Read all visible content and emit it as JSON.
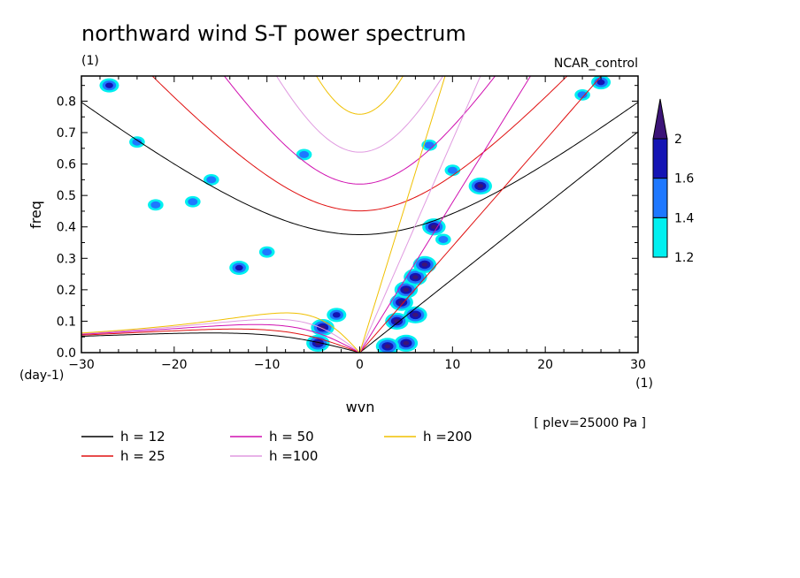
{
  "chart_data": {
    "type": "heatmap",
    "title": "northward wind S-T power spectrum",
    "subtitle": "(1)",
    "case_label": "NCAR_control",
    "xlabel": "wvn",
    "ylabel": "freq",
    "x_unit_label": "(1)",
    "y_unit_label": "(day-1)",
    "level_note": "[ plev=25000 Pa ]",
    "xlim": [
      -30,
      30
    ],
    "ylim": [
      0,
      0.88
    ],
    "x_ticks": [
      -30,
      -20,
      -10,
      0,
      10,
      20,
      30
    ],
    "x_tick_labels": [
      "−30",
      "−20",
      "−10",
      "0",
      "10",
      "20",
      "30"
    ],
    "y_ticks": [
      0.0,
      0.1,
      0.2,
      0.3,
      0.4,
      0.5,
      0.6,
      0.7,
      0.8
    ],
    "y_tick_labels": [
      "0.0",
      "0.1",
      "0.2",
      "0.3",
      "0.4",
      "0.5",
      "0.6",
      "0.7",
      "0.8"
    ],
    "colorbar": {
      "levels": [
        1.2,
        1.4,
        1.6,
        2
      ],
      "labels": [
        "1.2",
        "1.4",
        "1.6",
        "2"
      ],
      "colors": [
        "#00f0f0",
        "#1e78ff",
        "#1414b4",
        "#3c1478"
      ]
    },
    "dispersion_curves": [
      {
        "label": "h = 12",
        "h": 12,
        "color": "#000000"
      },
      {
        "label": "h = 25",
        "h": 25,
        "color": "#e01010"
      },
      {
        "label": "h = 50",
        "h": 50,
        "color": "#d010b0"
      },
      {
        "label": "h =100",
        "h": 100,
        "color": "#e09ae0"
      },
      {
        "label": "h =200",
        "h": 200,
        "color": "#f0c000"
      }
    ],
    "power_blobs": [
      {
        "x": -4,
        "y": 0.08,
        "level": 3
      },
      {
        "x": -4.5,
        "y": 0.03,
        "level": 3
      },
      {
        "x": -2.5,
        "y": 0.12,
        "level": 2
      },
      {
        "x": 4,
        "y": 0.1,
        "level": 3
      },
      {
        "x": 4.5,
        "y": 0.16,
        "level": 3
      },
      {
        "x": 5,
        "y": 0.2,
        "level": 3
      },
      {
        "x": 6,
        "y": 0.24,
        "level": 3
      },
      {
        "x": 7,
        "y": 0.28,
        "level": 3
      },
      {
        "x": 8,
        "y": 0.4,
        "level": 3
      },
      {
        "x": 5,
        "y": 0.03,
        "level": 3
      },
      {
        "x": 3,
        "y": 0.02,
        "level": 3
      },
      {
        "x": 6,
        "y": 0.12,
        "level": 3
      },
      {
        "x": 13,
        "y": 0.53,
        "level": 3
      },
      {
        "x": -27,
        "y": 0.85,
        "level": 2
      },
      {
        "x": -18,
        "y": 0.48,
        "level": 1
      },
      {
        "x": -13,
        "y": 0.27,
        "level": 2
      },
      {
        "x": -24,
        "y": 0.67,
        "level": 1
      },
      {
        "x": 24,
        "y": 0.82,
        "level": 1
      },
      {
        "x": 26,
        "y": 0.86,
        "level": 2
      },
      {
        "x": -6,
        "y": 0.63,
        "level": 1
      },
      {
        "x": -22,
        "y": 0.47,
        "level": 1
      },
      {
        "x": 7.5,
        "y": 0.66,
        "level": 1
      },
      {
        "x": 9,
        "y": 0.36,
        "level": 1
      },
      {
        "x": -16,
        "y": 0.55,
        "level": 1
      },
      {
        "x": 10,
        "y": 0.58,
        "level": 1
      },
      {
        "x": -10,
        "y": 0.32,
        "level": 1
      }
    ]
  }
}
